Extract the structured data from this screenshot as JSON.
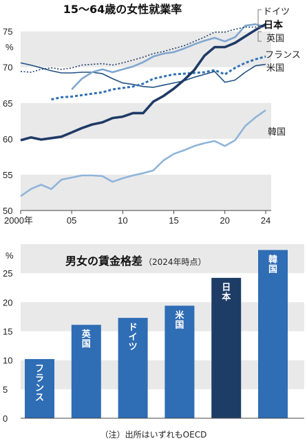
{
  "chart_data": [
    {
      "type": "line",
      "title": "15～64歳の女性就業率",
      "ylabel": "%",
      "ylim": [
        50,
        76.5
      ],
      "yticks": [
        50,
        55,
        60,
        65,
        70,
        75
      ],
      "xticks": [
        {
          "x": 2000,
          "label": "2000年"
        },
        {
          "x": 2005,
          "label": "05"
        },
        {
          "x": 2010,
          "label": "10"
        },
        {
          "x": 2015,
          "label": "15"
        },
        {
          "x": 2020,
          "label": "20"
        },
        {
          "x": 2024,
          "label": "24"
        }
      ],
      "grid": "alternating horizontal bands",
      "series": [
        {
          "name": "ドイツ",
          "color": "#1f3a66",
          "style": "dotted",
          "x": [
            2000,
            2001,
            2002,
            2003,
            2004,
            2005,
            2006,
            2007,
            2008,
            2009,
            2010,
            2011,
            2012,
            2013,
            2014,
            2015,
            2016,
            2017,
            2018,
            2019,
            2020,
            2021,
            2022,
            2023,
            2024
          ],
          "y": [
            69.4,
            69.3,
            69.7,
            69.9,
            69.7,
            69.9,
            70.3,
            70.4,
            70.5,
            70.3,
            70.6,
            71.0,
            71.4,
            71.9,
            72.2,
            72.6,
            73.0,
            73.6,
            74.2,
            74.9,
            74.9,
            75.3,
            75.6,
            75.6,
            76.0
          ]
        },
        {
          "name": "日本",
          "color": "#1f3a66",
          "style": "solid-bold",
          "x": [
            2000,
            2001,
            2002,
            2003,
            2004,
            2005,
            2006,
            2007,
            2008,
            2009,
            2010,
            2011,
            2012,
            2013,
            2014,
            2015,
            2016,
            2017,
            2018,
            2019,
            2020,
            2021,
            2022,
            2023,
            2024
          ],
          "y": [
            59.8,
            60.2,
            59.9,
            60.1,
            60.3,
            60.9,
            61.5,
            62.0,
            62.3,
            62.9,
            63.1,
            63.6,
            63.6,
            65.2,
            66.0,
            67.0,
            68.2,
            69.6,
            71.6,
            72.8,
            72.8,
            73.4,
            74.3,
            75.2,
            76.0
          ]
        },
        {
          "name": "英国",
          "color": "#7fa6cf",
          "style": "solid",
          "x": [
            2005,
            2006,
            2007,
            2008,
            2009,
            2010,
            2011,
            2012,
            2013,
            2014,
            2015,
            2016,
            2017,
            2018,
            2019,
            2020,
            2021,
            2022,
            2023,
            2024
          ],
          "y": [
            66.9,
            68.4,
            69.3,
            69.7,
            69.3,
            69.7,
            70.1,
            70.7,
            71.5,
            71.9,
            72.1,
            72.6,
            73.2,
            73.7,
            74.1,
            73.6,
            74.2,
            75.8,
            76.0,
            75.6
          ]
        },
        {
          "name": "フランス",
          "color": "#2f6fb5",
          "style": "dashed",
          "x": [
            2003,
            2004,
            2005,
            2006,
            2007,
            2008,
            2009,
            2010,
            2011,
            2012,
            2013,
            2014,
            2015,
            2016,
            2017,
            2018,
            2019,
            2020,
            2021,
            2022,
            2023,
            2024
          ],
          "y": [
            65.5,
            65.8,
            65.9,
            66.1,
            66.3,
            66.5,
            66.9,
            67.1,
            67.3,
            67.7,
            68.4,
            68.7,
            69.0,
            69.1,
            69.2,
            69.3,
            69.6,
            69.0,
            69.9,
            70.6,
            71.1,
            71.5
          ]
        },
        {
          "name": "米国",
          "color": "#1f4f82",
          "style": "solid-thin",
          "x": [
            2000,
            2001,
            2002,
            2003,
            2004,
            2005,
            2006,
            2007,
            2008,
            2009,
            2010,
            2011,
            2012,
            2013,
            2014,
            2015,
            2016,
            2017,
            2018,
            2019,
            2020,
            2021,
            2022,
            2023,
            2024
          ],
          "y": [
            70.6,
            70.3,
            69.9,
            69.5,
            69.2,
            69.2,
            69.3,
            69.3,
            69.1,
            68.4,
            67.8,
            67.6,
            67.3,
            67.2,
            67.5,
            67.8,
            68.1,
            68.6,
            69.0,
            69.4,
            67.9,
            68.2,
            69.3,
            70.2,
            70.4
          ]
        },
        {
          "name": "韓国",
          "color": "#8fb4db",
          "style": "solid",
          "x": [
            2000,
            2001,
            2002,
            2003,
            2004,
            2005,
            2006,
            2007,
            2008,
            2009,
            2010,
            2011,
            2012,
            2013,
            2014,
            2015,
            2016,
            2017,
            2018,
            2019,
            2020,
            2021,
            2022,
            2023,
            2024
          ],
          "y": [
            52.0,
            53.0,
            53.6,
            53.0,
            54.3,
            54.6,
            54.9,
            54.9,
            54.8,
            54.0,
            54.5,
            54.9,
            55.2,
            55.6,
            57.0,
            57.9,
            58.4,
            59.0,
            59.4,
            59.7,
            59.0,
            59.8,
            61.8,
            63.0,
            64.0
          ]
        }
      ]
    },
    {
      "type": "bar",
      "title": "男女の賃金格差",
      "subtitle": "（2024年時点）",
      "ylabel": "%",
      "ylim": [
        0,
        30
      ],
      "yticks": [
        0,
        5,
        10,
        15,
        20,
        25
      ],
      "categories": [
        "フランス",
        "英国",
        "ドイツ",
        "米国",
        "日本",
        "韓国"
      ],
      "values": [
        10.2,
        16.1,
        17.3,
        19.4,
        24.2,
        29.0
      ],
      "colors": [
        "#2f6db5",
        "#2f6db5",
        "#2f6db5",
        "#2f6db5",
        "#1e3d66",
        "#2f6db5"
      ],
      "grid": "alternating horizontal bands"
    }
  ],
  "note": "（注）出所はいずれもOECD"
}
